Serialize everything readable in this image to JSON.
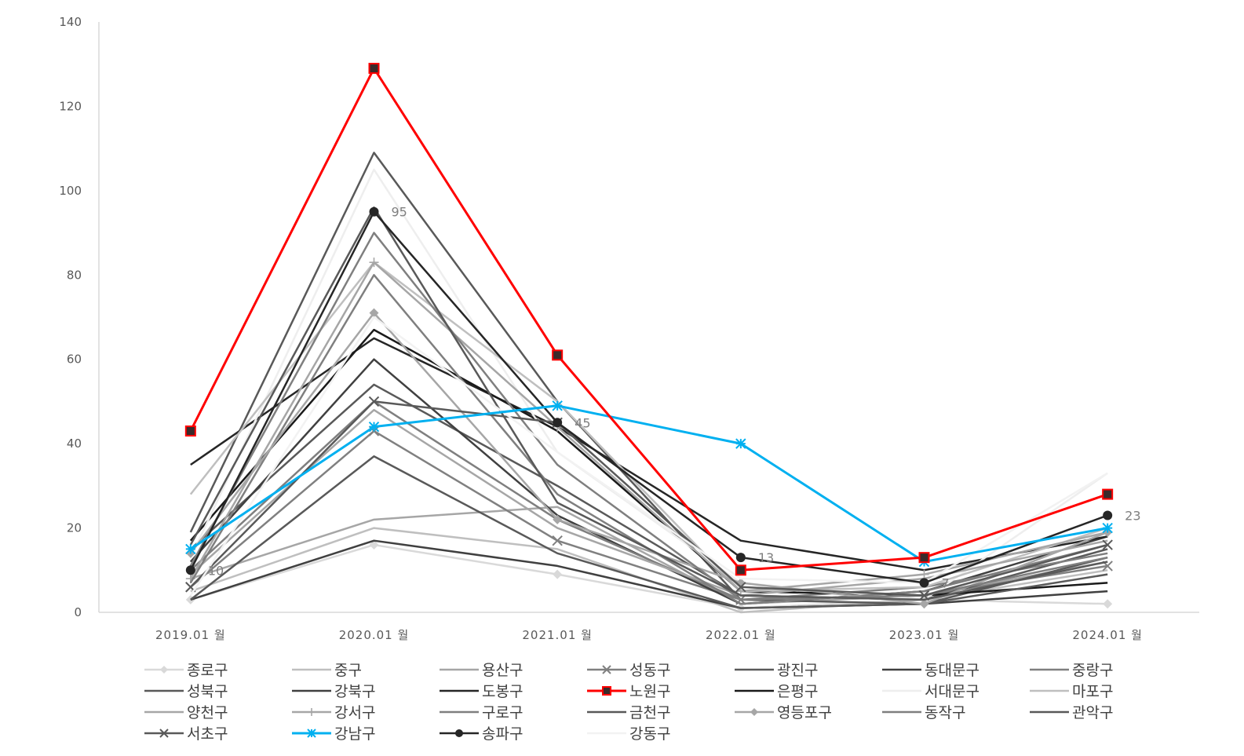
{
  "chart_data": {
    "type": "line",
    "categories": [
      "2019.01 월",
      "2020.01 월",
      "2021.01 월",
      "2022.01 월",
      "2023.01 월",
      "2024.01 월"
    ],
    "ylim": [
      0,
      140
    ],
    "yticks": [
      0,
      20,
      40,
      60,
      80,
      100,
      120,
      140
    ],
    "grid": false,
    "legend_position": "bottom",
    "series": [
      {
        "name": "종로구",
        "values": [
          3,
          16,
          9,
          1,
          3,
          2
        ],
        "color": "#d9d9d9",
        "marker": "diamond",
        "width": 2.5
      },
      {
        "name": "중구",
        "values": [
          5,
          20,
          15,
          0,
          3,
          10
        ],
        "color": "#bfbfbf",
        "marker": "none",
        "width": 2.5
      },
      {
        "name": "용산구",
        "values": [
          8,
          22,
          25,
          2,
          4,
          12
        ],
        "color": "#a6a6a6",
        "marker": "none",
        "width": 2.5
      },
      {
        "name": "성동구",
        "values": [
          6,
          43,
          17,
          3,
          4,
          11
        ],
        "color": "#808080",
        "marker": "x",
        "width": 2.5
      },
      {
        "name": "광진구",
        "values": [
          15,
          54,
          30,
          4,
          3,
          15
        ],
        "color": "#595959",
        "marker": "none",
        "width": 2.5
      },
      {
        "name": "동대문구",
        "values": [
          12,
          60,
          23,
          2,
          5,
          18
        ],
        "color": "#404040",
        "marker": "none",
        "width": 2.5
      },
      {
        "name": "중랑구",
        "values": [
          10,
          50,
          22,
          3,
          6,
          14
        ],
        "color": "#7f7f7f",
        "marker": "none",
        "width": 2.5
      },
      {
        "name": "성북구",
        "values": [
          19,
          109,
          50,
          3,
          2,
          13
        ],
        "color": "#595959",
        "marker": "none",
        "width": 2.5
      },
      {
        "name": "강북구",
        "values": [
          3,
          17,
          11,
          1,
          2,
          5
        ],
        "color": "#404040",
        "marker": "none",
        "width": 2.5
      },
      {
        "name": "도봉구",
        "values": [
          35,
          65,
          44,
          17,
          10,
          18
        ],
        "color": "#262626",
        "marker": "none",
        "width": 2.5
      },
      {
        "name": "노원구",
        "values": [
          43,
          129,
          61,
          10,
          13,
          28
        ],
        "color": "#ff0000",
        "marker": "square",
        "width": 3
      },
      {
        "name": "은평구",
        "values": [
          17,
          67,
          43,
          5,
          4,
          7
        ],
        "color": "#1a1a1a",
        "marker": "none",
        "width": 2.5
      },
      {
        "name": "서대문구",
        "values": [
          13,
          105,
          38,
          7,
          3,
          33
        ],
        "color": "#eeeeee",
        "marker": "none",
        "width": 2.5
      },
      {
        "name": "마포구",
        "values": [
          28,
          83,
          50,
          5,
          6,
          20
        ],
        "color": "#bfbfbf",
        "marker": "none",
        "width": 2.5
      },
      {
        "name": "양천구",
        "values": [
          9,
          48,
          20,
          4,
          8,
          17
        ],
        "color": "#a6a6a6",
        "marker": "none",
        "width": 2.5
      },
      {
        "name": "강서구",
        "values": [
          8,
          83,
          44,
          5,
          9,
          19
        ],
        "color": "#a6a6a6",
        "marker": "plus",
        "width": 2.5
      },
      {
        "name": "구로구",
        "values": [
          7,
          80,
          28,
          2,
          5,
          16
        ],
        "color": "#7f7f7f",
        "marker": "none",
        "width": 2.5
      },
      {
        "name": "금천구",
        "values": [
          3,
          37,
          14,
          1,
          2,
          9
        ],
        "color": "#595959",
        "marker": "none",
        "width": 2.5
      },
      {
        "name": "영등포구",
        "values": [
          14,
          71,
          22,
          7,
          2,
          19
        ],
        "color": "#a6a6a6",
        "marker": "diamond",
        "width": 2.5
      },
      {
        "name": "동작구",
        "values": [
          11,
          90,
          35,
          3,
          4,
          13
        ],
        "color": "#7f7f7f",
        "marker": "none",
        "width": 2.5
      },
      {
        "name": "관악구",
        "values": [
          16,
          96,
          26,
          4,
          3,
          12
        ],
        "color": "#595959",
        "marker": "none",
        "width": 2.5
      },
      {
        "name": "서초구",
        "values": [
          6,
          50,
          45,
          6,
          4,
          16
        ],
        "color": "#595959",
        "marker": "x",
        "width": 2.5
      },
      {
        "name": "강남구",
        "values": [
          15,
          44,
          49,
          40,
          12,
          20
        ],
        "color": "#00b0f0",
        "marker": "star",
        "width": 3
      },
      {
        "name": "송파구",
        "values": [
          10,
          95,
          45,
          13,
          7,
          23
        ],
        "color": "#262626",
        "marker": "circle",
        "width": 2.5
      },
      {
        "name": "강동구",
        "values": [
          4,
          70,
          38,
          8,
          7,
          33
        ],
        "color": "#f2f2f2",
        "marker": "none",
        "width": 2.5
      }
    ],
    "data_labels": [
      {
        "series": "송파구",
        "index": 0,
        "text": "10"
      },
      {
        "series": "송파구",
        "index": 1,
        "text": "95"
      },
      {
        "series": "송파구",
        "index": 2,
        "text": "45"
      },
      {
        "series": "송파구",
        "index": 3,
        "text": "13"
      },
      {
        "series": "송파구",
        "index": 4,
        "text": "7"
      },
      {
        "series": "송파구",
        "index": 5,
        "text": "23"
      }
    ]
  }
}
